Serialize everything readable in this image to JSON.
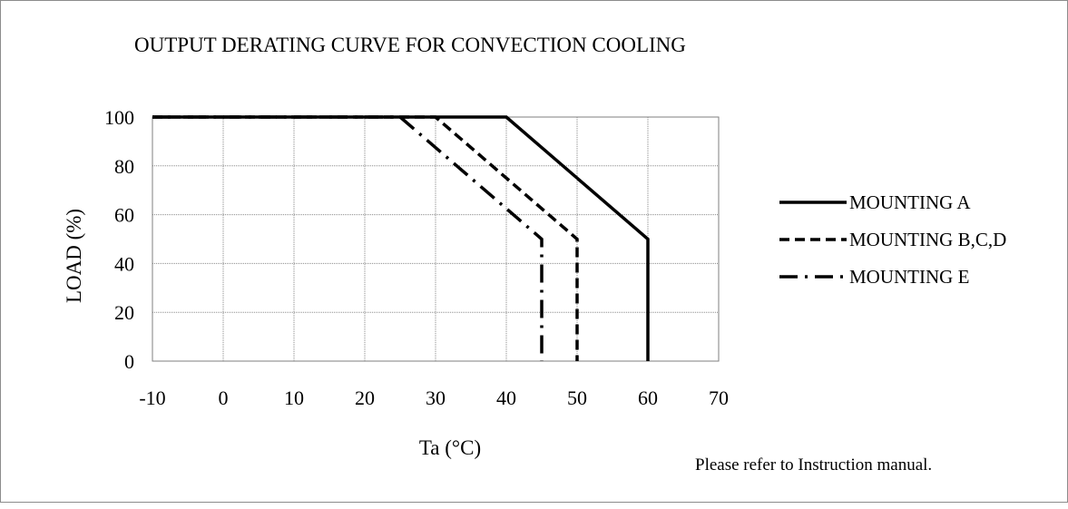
{
  "chart_data": {
    "type": "line",
    "title": "OUTPUT DERATING CURVE FOR CONVECTION COOLING",
    "xlabel": "Ta (°C)",
    "ylabel": "LOAD (%)",
    "xlim": [
      -10,
      70
    ],
    "ylim": [
      0,
      100
    ],
    "xticks": [
      -10,
      0,
      10,
      20,
      30,
      40,
      50,
      60,
      70
    ],
    "yticks": [
      0,
      20,
      40,
      60,
      80,
      100
    ],
    "grid": true,
    "grid_style": "dotted",
    "legend_position": "right",
    "series": [
      {
        "name": "MOUNTING A",
        "style": "solid",
        "color": "#000000",
        "points": [
          [
            -10,
            100
          ],
          [
            40,
            100
          ],
          [
            60,
            50
          ],
          [
            60,
            0
          ]
        ]
      },
      {
        "name": "MOUNTING B,C,D",
        "style": "dashed",
        "color": "#000000",
        "points": [
          [
            -10,
            100
          ],
          [
            30,
            100
          ],
          [
            50,
            50
          ],
          [
            50,
            0
          ]
        ]
      },
      {
        "name": "MOUNTING E",
        "style": "dash-dot",
        "color": "#000000",
        "points": [
          [
            -10,
            100
          ],
          [
            25,
            100
          ],
          [
            45,
            50
          ],
          [
            45,
            0
          ]
        ]
      }
    ],
    "note": "Please refer to Instruction manual."
  }
}
